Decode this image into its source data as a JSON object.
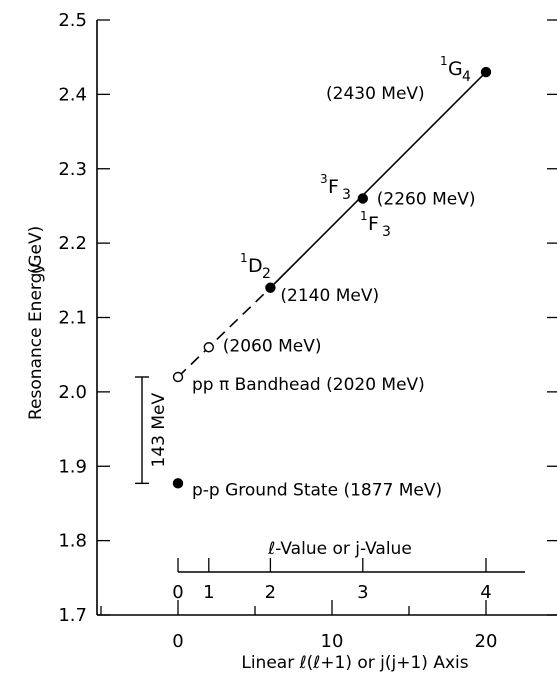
{
  "chart_data": {
    "type": "line",
    "title": "",
    "ylabel": "Resonance Energy",
    "ylabel_unit": "(GeV)",
    "xlabel": "Linear ℓ(ℓ+1) or j(j+1) Axis",
    "secondary_xlabel": "ℓ-Value or j-Value",
    "xlim": [
      -5,
      23
    ],
    "ylim": [
      1.7,
      2.5
    ],
    "x_ticks": [
      0,
      10,
      20
    ],
    "y_ticks": [
      1.7,
      1.8,
      1.9,
      2.0,
      2.1,
      2.2,
      2.3,
      2.4,
      2.5
    ],
    "y_tick_labels": [
      "1.7",
      "1.8",
      "1.9",
      "2.0",
      "2.1",
      "2.2",
      "2.3",
      "2.4",
      "2.5"
    ],
    "secondary_x_ticks": [
      {
        "label": "0",
        "x": 0
      },
      {
        "label": "1",
        "x": 2
      },
      {
        "label": "2",
        "x": 6
      },
      {
        "label": "3",
        "x": 12
      },
      {
        "label": "4",
        "x": 20
      }
    ],
    "points": [
      {
        "x": 0,
        "y": 2.02,
        "filled": false
      },
      {
        "x": 2,
        "y": 2.06,
        "filled": false,
        "label": "(2060 MeV)"
      },
      {
        "x": 6,
        "y": 2.14,
        "filled": true,
        "label": "(2140 MeV)"
      },
      {
        "x": 12,
        "y": 2.26,
        "filled": true,
        "label": "(2260 MeV)"
      },
      {
        "x": 20,
        "y": 2.43,
        "filled": true,
        "label": "(2430 MeV)"
      },
      {
        "x": 0,
        "y": 1.877,
        "filled": true,
        "label": "p-p Ground State (1877 MeV)"
      }
    ],
    "lines": [
      {
        "style": "dashed",
        "x": [
          0,
          6
        ],
        "y": [
          2.02,
          2.14
        ]
      },
      {
        "style": "solid",
        "x": [
          6,
          20
        ],
        "y": [
          2.14,
          2.43
        ]
      }
    ],
    "bandhead_label": "pp π Bandhead (2020 MeV)",
    "spectroscopic_labels": [
      {
        "sup": "1",
        "base": "D",
        "sub": "2",
        "x": 6,
        "y": 2.14
      },
      {
        "sup": "3",
        "base": "F",
        "sub": "3",
        "x": 12,
        "y": 2.26
      },
      {
        "sup": "1",
        "base": "F",
        "sub": "3",
        "x": 12,
        "y": 2.26
      },
      {
        "sup": "1",
        "base": "G",
        "sub": "4",
        "x": 20,
        "y": 2.43
      }
    ],
    "bracket": {
      "y_range": [
        1.877,
        2.02
      ],
      "label": "143 MeV"
    }
  }
}
